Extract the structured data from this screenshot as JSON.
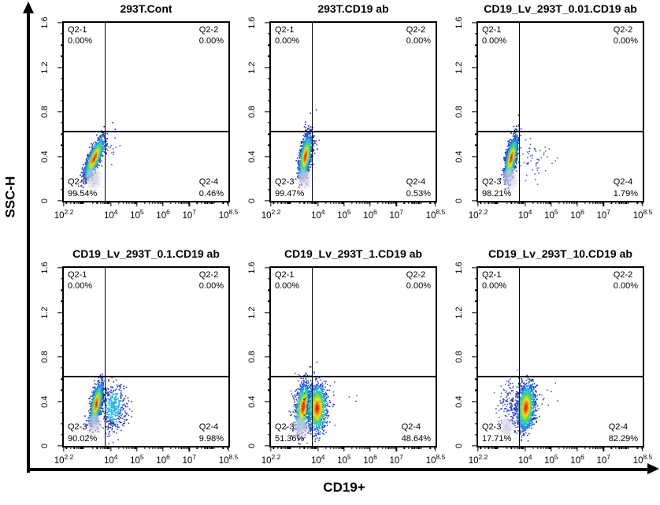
{
  "figure": {
    "x_axis_label": "CD19+",
    "y_axis_label": "SSC-H"
  },
  "colors": {
    "axis_arrow": "#000000",
    "gate_line": "#000000",
    "density_low": "#1215b2",
    "density_mid": "#3cc83c",
    "density_high": "#e11e12",
    "debris_gray": "#cdcddc",
    "sparse_dot_blue": "#2b35c4"
  },
  "chart_data": [
    {
      "type": "scatter",
      "title": "293T.Cont",
      "xlabel": "CD19+",
      "ylabel": "SSC-H",
      "x_axis": {
        "scale": "log",
        "tick_exponents": [
          "2.2",
          "4",
          "5",
          "6",
          "7",
          "8.5"
        ],
        "range_exp": [
          2.2,
          8.5
        ]
      },
      "y_axis": {
        "ticks": [
          "0",
          "0.4",
          "0.8",
          "1.2",
          "1.6"
        ],
        "range": [
          0,
          1.6
        ]
      },
      "gate": {
        "x_exp": 3.76,
        "y": 0.63
      },
      "quadrants": [
        {
          "label": "Q2-1",
          "value": "0.00%"
        },
        {
          "label": "Q2-2",
          "value": "0.00%"
        },
        {
          "label": "Q2-3",
          "value": "99.54%"
        },
        {
          "label": "Q2-4",
          "value": "0.46%"
        }
      ],
      "clusters": [
        {
          "kind": "halo",
          "cx": 3.85,
          "cy": 0.47,
          "sx": 0.27,
          "sy": 0.05,
          "rho": 0,
          "n": 20
        },
        {
          "kind": "density",
          "cx": 3.37,
          "cy": 0.385,
          "sx": 0.19,
          "sy": 0.09,
          "rho": 0.8,
          "n": 1600
        },
        {
          "kind": "debris",
          "cx": 3.33,
          "cy": 0.2,
          "sx": 0.14,
          "sy": 0.045,
          "rho": 0,
          "n": 60
        }
      ]
    },
    {
      "type": "scatter",
      "title": "293T.CD19 ab",
      "xlabel": "CD19+",
      "ylabel": "SSC-H",
      "x_axis": {
        "scale": "log",
        "tick_exponents": [
          "2.2",
          "4",
          "5",
          "6",
          "7",
          "8.5"
        ],
        "range_exp": [
          2.2,
          8.5
        ]
      },
      "y_axis": {
        "ticks": [
          "0",
          "0.4",
          "0.8",
          "1.2",
          "1.6"
        ],
        "range": [
          0,
          1.6
        ]
      },
      "gate": {
        "x_exp": 3.76,
        "y": 0.63
      },
      "quadrants": [
        {
          "label": "Q2-1",
          "value": "0.00%"
        },
        {
          "label": "Q2-2",
          "value": "0.00%"
        },
        {
          "label": "Q2-3",
          "value": "99.47%"
        },
        {
          "label": "Q2-4",
          "value": "0.53%"
        }
      ],
      "clusters": [
        {
          "kind": "halo",
          "cx": 3.85,
          "cy": 0.52,
          "sx": 0.15,
          "sy": 0.04,
          "rho": 0,
          "n": 10
        },
        {
          "kind": "density",
          "cx": 3.52,
          "cy": 0.4,
          "sx": 0.12,
          "sy": 0.095,
          "rho": 0.55,
          "n": 1600
        },
        {
          "kind": "debris",
          "cx": 3.48,
          "cy": 0.2,
          "sx": 0.12,
          "sy": 0.04,
          "rho": 0,
          "n": 55
        }
      ]
    },
    {
      "type": "scatter",
      "title": "CD19_Lv_293T_0.01.CD19 ab",
      "xlabel": "CD19+",
      "ylabel": "SSC-H",
      "x_axis": {
        "scale": "log",
        "tick_exponents": [
          "2.2",
          "4",
          "5",
          "6",
          "7",
          "8.5"
        ],
        "range_exp": [
          2.2,
          8.5
        ]
      },
      "y_axis": {
        "ticks": [
          "0",
          "0.4",
          "0.8",
          "1.2",
          "1.6"
        ],
        "range": [
          0,
          1.6
        ]
      },
      "gate": {
        "x_exp": 3.76,
        "y": 0.63
      },
      "quadrants": [
        {
          "label": "Q2-1",
          "value": "0.00%"
        },
        {
          "label": "Q2-2",
          "value": "0.00%"
        },
        {
          "label": "Q2-3",
          "value": "98.21%"
        },
        {
          "label": "Q2-4",
          "value": "1.79%"
        }
      ],
      "clusters": [
        {
          "kind": "halo",
          "cx": 4.35,
          "cy": 0.37,
          "sx": 0.3,
          "sy": 0.1,
          "rho": 0,
          "n": 55
        },
        {
          "kind": "density",
          "cx": 3.47,
          "cy": 0.385,
          "sx": 0.12,
          "sy": 0.09,
          "rho": 0.6,
          "n": 1500
        },
        {
          "kind": "debris",
          "cx": 3.42,
          "cy": 0.2,
          "sx": 0.13,
          "sy": 0.045,
          "rho": 0,
          "n": 55
        }
      ]
    },
    {
      "type": "scatter",
      "title": "CD19_Lv_293T_0.1.CD19 ab",
      "xlabel": "CD19+",
      "ylabel": "SSC-H",
      "x_axis": {
        "scale": "log",
        "tick_exponents": [
          "2.2",
          "4",
          "5",
          "6",
          "7",
          "8.5"
        ],
        "range_exp": [
          2.2,
          8.5
        ]
      },
      "y_axis": {
        "ticks": [
          "0",
          "0.4",
          "0.8",
          "1.2",
          "1.6"
        ],
        "range": [
          0,
          1.6
        ]
      },
      "gate": {
        "x_exp": 3.76,
        "y": 0.63
      },
      "quadrants": [
        {
          "label": "Q2-1",
          "value": "0.00%"
        },
        {
          "label": "Q2-2",
          "value": "0.00%"
        },
        {
          "label": "Q2-3",
          "value": "90.02%"
        },
        {
          "label": "Q2-4",
          "value": "9.98%"
        }
      ],
      "clusters": [
        {
          "kind": "cloud",
          "cx": 4.1,
          "cy": 0.35,
          "sx": 0.24,
          "sy": 0.11,
          "rho": 0.05,
          "n": 450
        },
        {
          "kind": "density",
          "cx": 3.45,
          "cy": 0.38,
          "sx": 0.12,
          "sy": 0.09,
          "rho": 0.6,
          "n": 1500
        },
        {
          "kind": "debris",
          "cx": 3.38,
          "cy": 0.19,
          "sx": 0.13,
          "sy": 0.045,
          "rho": 0,
          "n": 55
        }
      ]
    },
    {
      "type": "scatter",
      "title": "CD19_Lv_293T_1.CD19 ab",
      "xlabel": "CD19+",
      "ylabel": "SSC-H",
      "x_axis": {
        "scale": "log",
        "tick_exponents": [
          "2.2",
          "4",
          "5",
          "6",
          "7",
          "8.5"
        ],
        "range_exp": [
          2.2,
          8.5
        ]
      },
      "y_axis": {
        "ticks": [
          "0",
          "0.4",
          "0.8",
          "1.2",
          "1.6"
        ],
        "range": [
          0,
          1.6
        ]
      },
      "gate": {
        "x_exp": 3.76,
        "y": 0.63
      },
      "quadrants": [
        {
          "label": "Q2-1",
          "value": "0.00%"
        },
        {
          "label": "Q2-2",
          "value": "0.00%"
        },
        {
          "label": "Q2-3",
          "value": "51.36%"
        },
        {
          "label": "Q2-4",
          "value": "48.64%"
        }
      ],
      "clusters": [
        {
          "kind": "halo",
          "cx": 3.7,
          "cy": 0.36,
          "sx": 0.38,
          "sy": 0.13,
          "rho": 0,
          "n": 260
        },
        {
          "kind": "halo",
          "cx": 5.3,
          "cy": 0.42,
          "sx": 0.25,
          "sy": 0.04,
          "rho": 0,
          "n": 3
        },
        {
          "kind": "density",
          "cx": 3.44,
          "cy": 0.35,
          "sx": 0.15,
          "sy": 0.105,
          "rho": 0.35,
          "n": 1000
        },
        {
          "kind": "density",
          "cx": 3.97,
          "cy": 0.34,
          "sx": 0.18,
          "sy": 0.105,
          "rho": 0.05,
          "n": 1150
        },
        {
          "kind": "debris",
          "cx": 3.33,
          "cy": 0.17,
          "sx": 0.13,
          "sy": 0.045,
          "rho": 0,
          "n": 50
        }
      ]
    },
    {
      "type": "scatter",
      "title": "CD19_Lv_293T_10.CD19 ab",
      "xlabel": "CD19+",
      "ylabel": "SSC-H",
      "x_axis": {
        "scale": "log",
        "tick_exponents": [
          "2.2",
          "4",
          "5",
          "6",
          "7",
          "8.5"
        ],
        "range_exp": [
          2.2,
          8.5
        ]
      },
      "y_axis": {
        "ticks": [
          "0",
          "0.4",
          "0.8",
          "1.2",
          "1.6"
        ],
        "range": [
          0,
          1.6
        ]
      },
      "gate": {
        "x_exp": 3.76,
        "y": 0.63
      },
      "quadrants": [
        {
          "label": "Q2-1",
          "value": "0.00%"
        },
        {
          "label": "Q2-2",
          "value": "0.00%"
        },
        {
          "label": "Q2-3",
          "value": "17.71%"
        },
        {
          "label": "Q2-4",
          "value": "82.29%"
        }
      ],
      "clusters": [
        {
          "kind": "halo",
          "cx": 3.7,
          "cy": 0.36,
          "sx": 0.33,
          "sy": 0.1,
          "rho": 0,
          "n": 320
        },
        {
          "kind": "halo",
          "cx": 4.95,
          "cy": 0.46,
          "sx": 0.25,
          "sy": 0.05,
          "rho": 0,
          "n": 5
        },
        {
          "kind": "density",
          "cx": 4.03,
          "cy": 0.345,
          "sx": 0.165,
          "sy": 0.1,
          "rho": 0.2,
          "n": 1600
        },
        {
          "kind": "debris",
          "cx": 3.3,
          "cy": 0.17,
          "sx": 0.11,
          "sy": 0.04,
          "rho": 0,
          "n": 35
        }
      ]
    }
  ]
}
